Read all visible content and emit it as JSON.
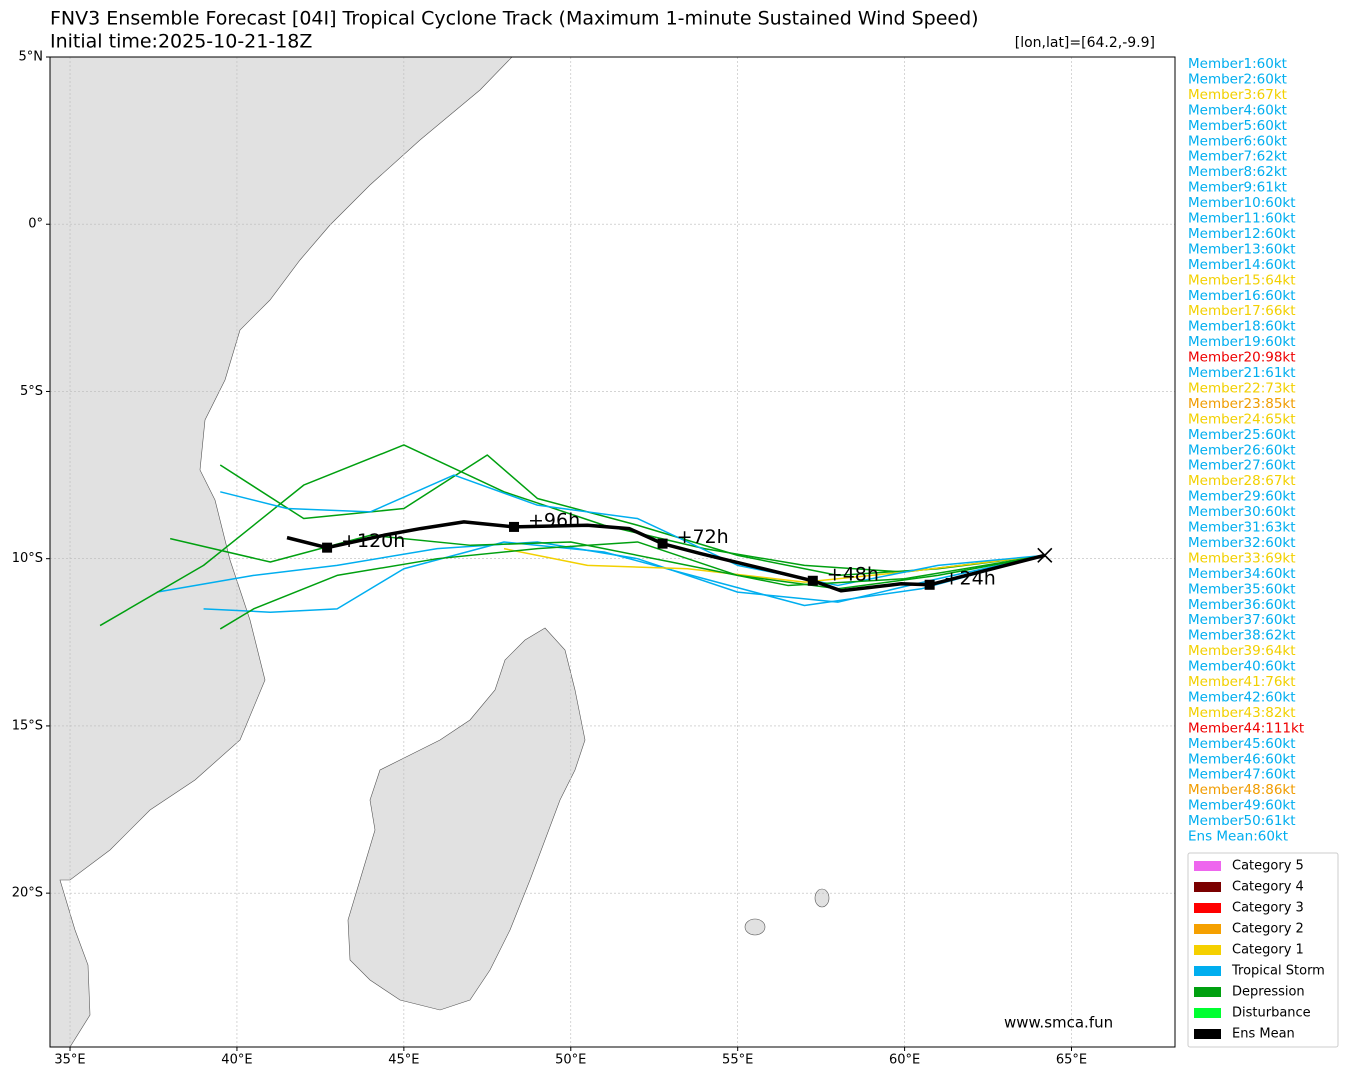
{
  "chart_data": {
    "type": "track_map",
    "title": "FNV3 Ensemble Forecast [04I] Tropical Cyclone Track (Maximum 1-minute Sustained Wind Speed)",
    "subtitle": "Initial time:2025-10-21-18Z",
    "position_label": "[lon,lat]=[64.2,-9.9]",
    "watermark": "www.smca.fun",
    "xlim": [
      34.4,
      68.1
    ],
    "ylim": [
      -24.6,
      5
    ],
    "xticks": [
      {
        "value": 35,
        "label": "35°E"
      },
      {
        "value": 40,
        "label": "40°E"
      },
      {
        "value": 45,
        "label": "45°E"
      },
      {
        "value": 50,
        "label": "50°E"
      },
      {
        "value": 55,
        "label": "55°E"
      },
      {
        "value": 60,
        "label": "60°E"
      },
      {
        "value": 65,
        "label": "65°E"
      }
    ],
    "yticks": [
      {
        "value": 5,
        "label": "5°N"
      },
      {
        "value": 0,
        "label": "0°"
      },
      {
        "value": -5,
        "label": "5°S"
      },
      {
        "value": -10,
        "label": "10°S"
      },
      {
        "value": -15,
        "label": "15°S"
      },
      {
        "value": -20,
        "label": "20°S"
      }
    ],
    "grid": true,
    "member_tracks": [
      {
        "color": "#00aeef",
        "lon": [
          64.2,
          61,
          58,
          55,
          52,
          49,
          46,
          43,
          40.5,
          37.6
        ],
        "lat": [
          -9.9,
          -10.6,
          -11.3,
          -11,
          -10,
          -9.5,
          -9.7,
          -10.2,
          -10.5,
          -11
        ]
      },
      {
        "color": "#00a010",
        "lon": [
          64.2,
          60,
          57,
          54,
          51,
          48,
          45,
          42,
          39,
          35.9
        ],
        "lat": [
          -9.9,
          -10.4,
          -10.2,
          -9.7,
          -9,
          -8,
          -6.6,
          -7.8,
          -10.2,
          -12.0
        ]
      },
      {
        "color": "#00a010",
        "lon": [
          64.2,
          61,
          58,
          55,
          52,
          49,
          47.5,
          45,
          42,
          39.5
        ],
        "lat": [
          -9.9,
          -10.3,
          -10.5,
          -9.9,
          -9,
          -8.2,
          -6.9,
          -8.5,
          -8.8,
          -7.2
        ]
      },
      {
        "color": "#00aeef",
        "lon": [
          64.2,
          60.5,
          57,
          54,
          51,
          48,
          45,
          43,
          41,
          39
        ],
        "lat": [
          -9.9,
          -10.9,
          -11.4,
          -10.6,
          -9.8,
          -9.5,
          -10.3,
          -11.5,
          -11.6,
          -11.5
        ]
      },
      {
        "color": "#f2d000",
        "lon": [
          64.2,
          60,
          57,
          53.5,
          50.5,
          48
        ],
        "lat": [
          -9.9,
          -10.4,
          -10.7,
          -10.3,
          -10.2,
          -9.7
        ]
      },
      {
        "color": "#00aeef",
        "lon": [
          64.2,
          61,
          58,
          55,
          52,
          49,
          46.5,
          44,
          41.5,
          39.5
        ],
        "lat": [
          -9.9,
          -10.2,
          -10.8,
          -10.2,
          -8.8,
          -8.4,
          -7.5,
          -8.6,
          -8.5,
          -8.0
        ]
      },
      {
        "color": "#00a010",
        "lon": [
          64.2,
          60,
          56.5,
          53,
          50,
          47,
          44,
          41,
          38
        ],
        "lat": [
          -9.9,
          -10.6,
          -10.8,
          -10.1,
          -9.5,
          -9.6,
          -9.3,
          -10.1,
          -9.4
        ]
      },
      {
        "color": "#00a010",
        "lon": [
          64.2,
          61,
          58,
          55,
          52,
          49,
          46,
          43,
          40.5,
          39.5
        ],
        "lat": [
          -9.9,
          -10.5,
          -10.9,
          -10.5,
          -9.5,
          -9.7,
          -10,
          -10.5,
          -11.5,
          -12.1
        ]
      }
    ],
    "mean_track": {
      "color": "#000000",
      "lon": [
        64.2,
        60.75,
        59.9,
        58.1,
        57.25,
        53.9,
        52.75,
        51.75,
        50.5,
        48.3,
        46.8,
        45.5,
        44.4,
        42.7,
        41.5
      ],
      "lat": [
        -9.9,
        -10.78,
        -10.75,
        -10.96,
        -10.66,
        -9.85,
        -9.55,
        -9.1,
        -9.0,
        -9.05,
        -8.9,
        -9.1,
        -9.3,
        -9.67,
        -9.37
      ],
      "point_labels": [
        null,
        "+24h",
        null,
        null,
        "+48h",
        null,
        "+72h",
        null,
        null,
        "+96h",
        null,
        null,
        null,
        "+120h",
        null
      ]
    },
    "members": [
      {
        "label": "Member1:60kt",
        "color": "#00aeef"
      },
      {
        "label": "Member2:60kt",
        "color": "#00aeef"
      },
      {
        "label": "Member3:67kt",
        "color": "#f2d000"
      },
      {
        "label": "Member4:60kt",
        "color": "#00aeef"
      },
      {
        "label": "Member5:60kt",
        "color": "#00aeef"
      },
      {
        "label": "Member6:60kt",
        "color": "#00aeef"
      },
      {
        "label": "Member7:62kt",
        "color": "#00aeef"
      },
      {
        "label": "Member8:62kt",
        "color": "#00aeef"
      },
      {
        "label": "Member9:61kt",
        "color": "#00aeef"
      },
      {
        "label": "Member10:60kt",
        "color": "#00aeef"
      },
      {
        "label": "Member11:60kt",
        "color": "#00aeef"
      },
      {
        "label": "Member12:60kt",
        "color": "#00aeef"
      },
      {
        "label": "Member13:60kt",
        "color": "#00aeef"
      },
      {
        "label": "Member14:60kt",
        "color": "#00aeef"
      },
      {
        "label": "Member15:64kt",
        "color": "#f2d000"
      },
      {
        "label": "Member16:60kt",
        "color": "#00aeef"
      },
      {
        "label": "Member17:66kt",
        "color": "#f2d000"
      },
      {
        "label": "Member18:60kt",
        "color": "#00aeef"
      },
      {
        "label": "Member19:60kt",
        "color": "#00aeef"
      },
      {
        "label": "Member20:98kt",
        "color": "#ee0000"
      },
      {
        "label": "Member21:61kt",
        "color": "#00aeef"
      },
      {
        "label": "Member22:73kt",
        "color": "#f2d000"
      },
      {
        "label": "Member23:85kt",
        "color": "#f09c00"
      },
      {
        "label": "Member24:65kt",
        "color": "#f2d000"
      },
      {
        "label": "Member25:60kt",
        "color": "#00aeef"
      },
      {
        "label": "Member26:60kt",
        "color": "#00aeef"
      },
      {
        "label": "Member27:60kt",
        "color": "#00aeef"
      },
      {
        "label": "Member28:67kt",
        "color": "#f2d000"
      },
      {
        "label": "Member29:60kt",
        "color": "#00aeef"
      },
      {
        "label": "Member30:60kt",
        "color": "#00aeef"
      },
      {
        "label": "Member31:63kt",
        "color": "#00aeef"
      },
      {
        "label": "Member32:60kt",
        "color": "#00aeef"
      },
      {
        "label": "Member33:69kt",
        "color": "#f2d000"
      },
      {
        "label": "Member34:60kt",
        "color": "#00aeef"
      },
      {
        "label": "Member35:60kt",
        "color": "#00aeef"
      },
      {
        "label": "Member36:60kt",
        "color": "#00aeef"
      },
      {
        "label": "Member37:60kt",
        "color": "#00aeef"
      },
      {
        "label": "Member38:62kt",
        "color": "#00aeef"
      },
      {
        "label": "Member39:64kt",
        "color": "#f2d000"
      },
      {
        "label": "Member40:60kt",
        "color": "#00aeef"
      },
      {
        "label": "Member41:76kt",
        "color": "#f2d000"
      },
      {
        "label": "Member42:60kt",
        "color": "#00aeef"
      },
      {
        "label": "Member43:82kt",
        "color": "#f2d000"
      },
      {
        "label": "Member44:111kt",
        "color": "#ee0000"
      },
      {
        "label": "Member45:60kt",
        "color": "#00aeef"
      },
      {
        "label": "Member46:60kt",
        "color": "#00aeef"
      },
      {
        "label": "Member47:60kt",
        "color": "#00aeef"
      },
      {
        "label": "Member48:86kt",
        "color": "#f09c00"
      },
      {
        "label": "Member49:60kt",
        "color": "#00aeef"
      },
      {
        "label": "Member50:61kt",
        "color": "#00aeef"
      },
      {
        "label": "Ens Mean:60kt",
        "color": "#00aeef"
      }
    ],
    "legend": [
      {
        "name": "Category 5",
        "color": "#ee66ee"
      },
      {
        "name": "Category 4",
        "color": "#7b0000"
      },
      {
        "name": "Category 3",
        "color": "#ff0000"
      },
      {
        "name": "Category 2",
        "color": "#f5a000"
      },
      {
        "name": "Category 1",
        "color": "#f5d000"
      },
      {
        "name": "Tropical Storm",
        "color": "#00aeef"
      },
      {
        "name": "Depression",
        "color": "#00a010"
      },
      {
        "name": "Disturbance",
        "color": "#00ff30"
      },
      {
        "name": "Ens Mean",
        "color": "#000000"
      }
    ]
  }
}
